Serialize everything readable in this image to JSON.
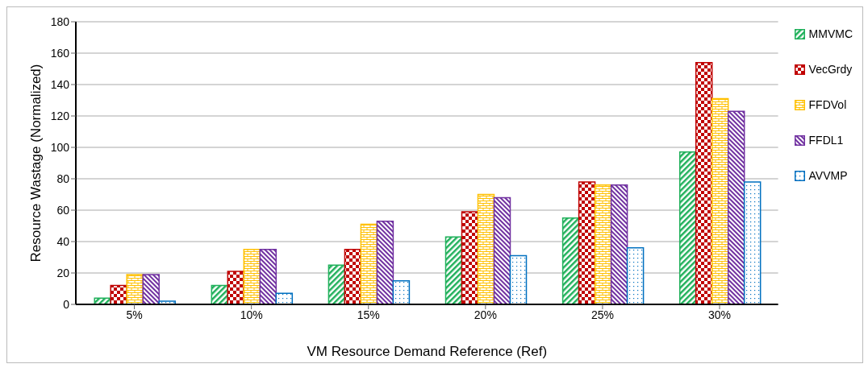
{
  "chart_data": {
    "type": "bar",
    "xlabel": "VM Resource Demand Reference (Ref)",
    "ylabel": "Resource Wastage (Normalized)",
    "categories": [
      "5%",
      "10%",
      "15%",
      "20%",
      "25%",
      "30%"
    ],
    "series": [
      {
        "name": "MMVMC",
        "color": "#1fb05a",
        "values": [
          4,
          12,
          25,
          43,
          55,
          97
        ]
      },
      {
        "name": "VecGrdy",
        "color": "#c00000",
        "values": [
          12,
          21,
          35,
          59,
          78,
          154
        ]
      },
      {
        "name": "FFDVol",
        "color": "#ffc000",
        "values": [
          19,
          35,
          51,
          70,
          76,
          131
        ]
      },
      {
        "name": "FFDL1",
        "color": "#7030a0",
        "values": [
          19,
          35,
          53,
          68,
          76,
          123
        ]
      },
      {
        "name": "AVVMP",
        "color": "#0070c0",
        "values": [
          2,
          7,
          15,
          31,
          36,
          78
        ]
      }
    ],
    "ylim": [
      0,
      180
    ],
    "yticks": [
      0,
      20,
      40,
      60,
      80,
      100,
      120,
      140,
      160,
      180
    ],
    "grid": "y",
    "legend": "right"
  }
}
